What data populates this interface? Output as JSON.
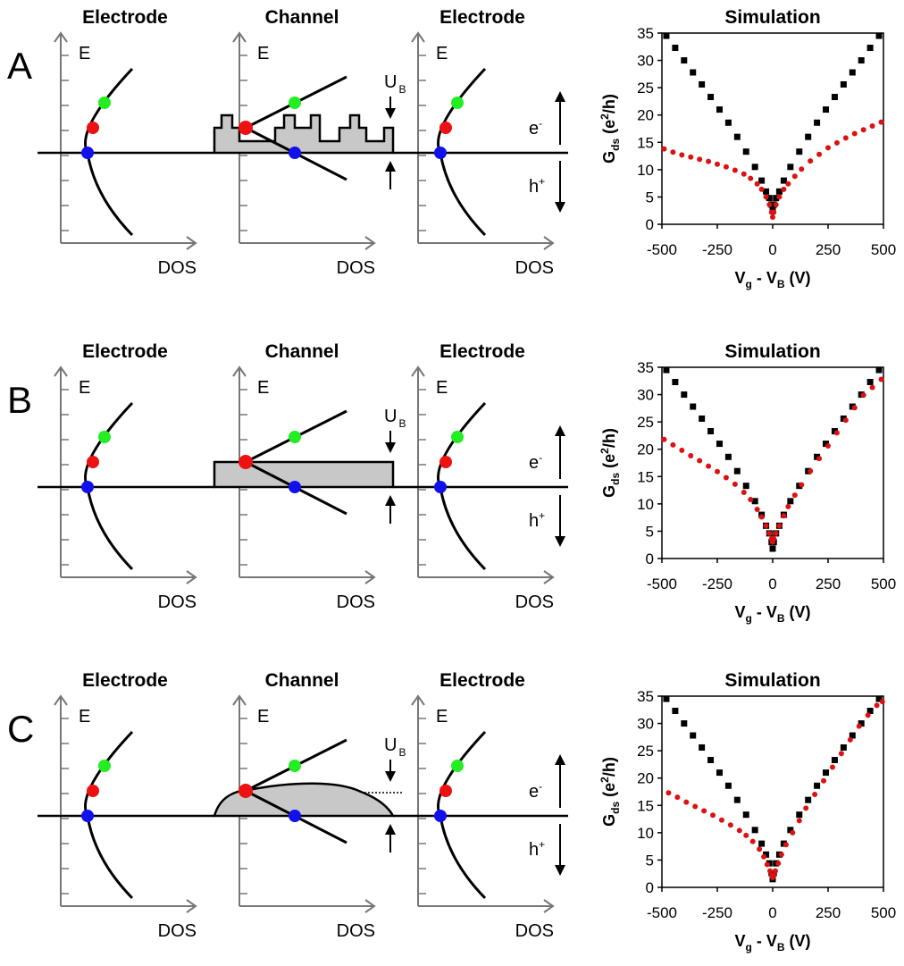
{
  "panels": [
    {
      "label": "A",
      "barrier_shape": "steps",
      "titles": {
        "left": "Electrode",
        "middle": "Channel",
        "right": "Electrode",
        "sim": "Simulation"
      },
      "axis": {
        "energy": "E",
        "dos": "DOS"
      },
      "annotations": {
        "barrier": "U",
        "barrier_sub": "B",
        "electron": "e",
        "electron_sup": "-",
        "hole": "h",
        "hole_sup": "+"
      }
    },
    {
      "label": "B",
      "barrier_shape": "rectangle",
      "titles": {
        "left": "Electrode",
        "middle": "Channel",
        "right": "Electrode",
        "sim": "Simulation"
      },
      "axis": {
        "energy": "E",
        "dos": "DOS"
      },
      "annotations": {
        "barrier": "U",
        "barrier_sub": "B",
        "electron": "e",
        "electron_sup": "-",
        "hole": "h",
        "hole_sup": "+"
      }
    },
    {
      "label": "C",
      "barrier_shape": "dome",
      "titles": {
        "left": "Electrode",
        "middle": "Channel",
        "right": "Electrode",
        "sim": "Simulation"
      },
      "axis": {
        "energy": "E",
        "dos": "DOS"
      },
      "annotations": {
        "barrier": "U",
        "barrier_sub": "B",
        "electron": "e",
        "electron_sup": "-",
        "hole": "h",
        "hole_sup": "+"
      }
    }
  ],
  "colors": {
    "dot_green": "#22ee22",
    "dot_red": "#ee1111",
    "dot_blue": "#1111ee",
    "fill": "#c8c8c8",
    "axis": "#777777",
    "series_black": "#000000",
    "series_red": "#dd1111"
  },
  "chart_data": [
    {
      "type": "scatter",
      "title": "Simulation",
      "xlabel": "V",
      "xlabel_sub": "g",
      "xlabel_rest": " - V",
      "xlabel_sub2": "B",
      "xlabel_unit": " (V)",
      "ylabel": "G",
      "ylabel_sub": "ds",
      "ylabel_rest": " (e",
      "ylabel_sup": "2",
      "ylabel_end": "/h)",
      "xlim": [
        -500,
        500
      ],
      "ylim": [
        0,
        35
      ],
      "xticks": [
        "-500",
        "-250",
        "0",
        "250",
        "500"
      ],
      "yticks": [
        "0",
        "5",
        "10",
        "15",
        "20",
        "25",
        "30",
        "35"
      ],
      "series": [
        {
          "x": [
            -480,
            -440,
            -400,
            -360,
            -320,
            -280,
            -240,
            -200,
            -160,
            -120,
            -80,
            -50,
            -30,
            -15,
            -5,
            0,
            5,
            15,
            30,
            50,
            80,
            120,
            160,
            200,
            240,
            280,
            320,
            360,
            400,
            440,
            480
          ],
          "values": [
            34.5,
            32.3,
            30.0,
            27.8,
            25.6,
            23.3,
            21.0,
            18.6,
            16.0,
            13.3,
            10.5,
            8.0,
            6.0,
            4.8,
            3.6,
            3.0,
            3.6,
            4.8,
            6.0,
            8.0,
            10.5,
            13.3,
            16.0,
            18.6,
            21.0,
            23.3,
            25.6,
            27.8,
            30.0,
            32.3,
            34.5
          ],
          "color": "#000000",
          "marker": "square"
        },
        {
          "x": [
            -490,
            -450,
            -410,
            -370,
            -330,
            -290,
            -250,
            -210,
            -170,
            -130,
            -100,
            -70,
            -50,
            -30,
            -15,
            -5,
            0,
            5,
            15,
            30,
            50,
            70,
            100,
            130,
            170,
            210,
            250,
            290,
            330,
            370,
            410,
            450,
            490
          ],
          "values": [
            13.8,
            13.2,
            12.7,
            12.3,
            11.9,
            11.5,
            11.0,
            10.5,
            9.9,
            9.2,
            8.4,
            7.4,
            6.4,
            5.0,
            3.6,
            2.2,
            1.3,
            2.2,
            3.6,
            5.0,
            6.4,
            7.4,
            8.8,
            10.1,
            11.6,
            12.8,
            14.0,
            14.9,
            15.8,
            16.6,
            17.3,
            18.0,
            18.7
          ],
          "color": "#dd1111",
          "marker": "circle"
        }
      ]
    },
    {
      "type": "scatter",
      "title": "Simulation",
      "xlabel": "V",
      "xlabel_sub": "g",
      "xlabel_rest": " - V",
      "xlabel_sub2": "B",
      "xlabel_unit": " (V)",
      "ylabel": "G",
      "ylabel_sub": "ds",
      "ylabel_rest": " (e",
      "ylabel_sup": "2",
      "ylabel_end": "/h)",
      "xlim": [
        -500,
        500
      ],
      "ylim": [
        0,
        35
      ],
      "xticks": [
        "-500",
        "-250",
        "0",
        "250",
        "500"
      ],
      "yticks": [
        "0",
        "5",
        "10",
        "15",
        "20",
        "25",
        "30",
        "35"
      ],
      "series": [
        {
          "x": [
            -480,
            -440,
            -400,
            -360,
            -320,
            -280,
            -240,
            -200,
            -160,
            -120,
            -80,
            -50,
            -30,
            -15,
            -5,
            0,
            5,
            15,
            30,
            50,
            80,
            120,
            160,
            200,
            240,
            280,
            320,
            360,
            400,
            440,
            480
          ],
          "values": [
            34.5,
            32.3,
            30.0,
            27.8,
            25.6,
            23.3,
            21.0,
            18.6,
            16.0,
            13.3,
            10.5,
            8.0,
            6.0,
            4.6,
            3.0,
            1.8,
            3.0,
            4.6,
            6.0,
            8.0,
            10.5,
            13.3,
            16.0,
            18.6,
            21.0,
            23.3,
            25.6,
            27.8,
            30.0,
            32.3,
            34.5
          ],
          "color": "#000000",
          "marker": "square"
        },
        {
          "x": [
            -490,
            -450,
            -410,
            -370,
            -330,
            -290,
            -250,
            -210,
            -170,
            -130,
            -100,
            -70,
            -50,
            -30,
            -15,
            -5,
            0,
            5,
            15,
            30,
            50,
            70,
            100,
            130,
            170,
            210,
            250,
            290,
            330,
            370,
            410,
            450,
            490
          ],
          "values": [
            21.8,
            20.8,
            19.8,
            18.8,
            17.9,
            16.9,
            15.9,
            14.8,
            13.6,
            12.1,
            10.8,
            9.0,
            7.6,
            6.0,
            4.6,
            3.6,
            3.0,
            3.6,
            4.6,
            6.0,
            7.8,
            9.5,
            11.6,
            13.5,
            16.0,
            18.3,
            20.6,
            23.0,
            25.3,
            27.6,
            29.9,
            31.3,
            32.8
          ],
          "color": "#dd1111",
          "marker": "circle"
        }
      ]
    },
    {
      "type": "scatter",
      "title": "Simulation",
      "xlabel": "V",
      "xlabel_sub": "g",
      "xlabel_rest": " - V",
      "xlabel_sub2": "B",
      "xlabel_unit": " (V)",
      "ylabel": "G",
      "ylabel_sub": "ds",
      "ylabel_rest": " (e",
      "ylabel_sup": "2",
      "ylabel_end": "/h)",
      "xlim": [
        -500,
        500
      ],
      "ylim": [
        0,
        35
      ],
      "xticks": [
        "-500",
        "-250",
        "0",
        "250",
        "500"
      ],
      "yticks": [
        "0",
        "5",
        "10",
        "15",
        "20",
        "25",
        "30",
        "35"
      ],
      "series": [
        {
          "x": [
            -480,
            -440,
            -400,
            -360,
            -320,
            -280,
            -240,
            -200,
            -160,
            -120,
            -80,
            -50,
            -30,
            -15,
            -5,
            0,
            5,
            15,
            30,
            50,
            80,
            120,
            160,
            200,
            240,
            280,
            320,
            360,
            400,
            440,
            480
          ],
          "values": [
            34.5,
            32.3,
            30.0,
            27.8,
            25.6,
            23.3,
            21.0,
            18.6,
            16.0,
            13.3,
            10.5,
            8.0,
            6.0,
            4.4,
            2.6,
            1.5,
            2.6,
            4.4,
            6.0,
            8.0,
            10.5,
            13.3,
            16.0,
            18.6,
            21.0,
            23.3,
            25.6,
            27.8,
            30.0,
            32.3,
            34.5
          ],
          "color": "#000000",
          "marker": "square"
        },
        {
          "x": [
            -470,
            -430,
            -390,
            -350,
            -310,
            -270,
            -230,
            -190,
            -150,
            -120,
            -90,
            -60,
            -40,
            -25,
            -12,
            -4,
            0,
            4,
            12,
            25,
            40,
            60,
            90,
            120,
            150,
            190,
            230,
            270,
            310,
            350,
            390,
            430,
            470,
            495
          ],
          "values": [
            17.3,
            16.5,
            15.6,
            14.8,
            14.0,
            13.2,
            12.3,
            11.4,
            10.4,
            9.5,
            8.4,
            7.0,
            5.6,
            4.2,
            3.0,
            2.2,
            1.8,
            2.2,
            3.0,
            4.4,
            6.0,
            7.8,
            10.0,
            12.2,
            14.5,
            17.0,
            19.5,
            22.0,
            24.5,
            27.0,
            29.5,
            31.5,
            33.3,
            34.0
          ],
          "color": "#dd1111",
          "marker": "circle"
        }
      ]
    }
  ]
}
